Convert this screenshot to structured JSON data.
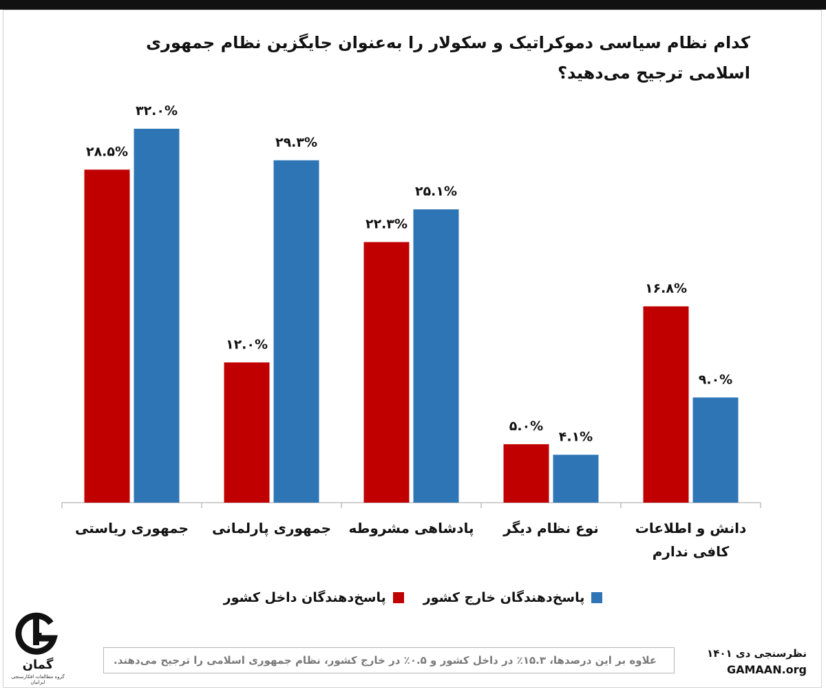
{
  "title": "کدام نظام سیاسی دموکراتیک و سکولار را به‌عنوان جایگزین نظام جمهوری اسلامی ترجیح می‌دهید؟",
  "colors": {
    "inside": "#c00000",
    "outside": "#2e75b6",
    "axis": "#bfbfbf"
  },
  "chart_data": {
    "type": "bar",
    "title": "کدام نظام سیاسی دموکراتیک و سکولار را به‌عنوان جایگزین نظام جمهوری اسلامی ترجیح می‌دهید؟",
    "categories": [
      [
        "جمهوری ریاستی"
      ],
      [
        "جمهوری پارلمانی"
      ],
      [
        "پادشاهی مشروطه"
      ],
      [
        "نوع نظام دیگر"
      ],
      [
        "دانش و اطلاعات",
        "کافی ندارم"
      ]
    ],
    "series": [
      {
        "name": "پاسخ‌دهندگان داخل کشور",
        "color": "#c00000",
        "values": [
          28.5,
          12.0,
          22.3,
          5.0,
          16.8
        ],
        "labels": [
          "۲۸.۵%",
          "۱۲.۰%",
          "۲۲.۳%",
          "۵.۰%",
          "۱۶.۸%"
        ]
      },
      {
        "name": "پاسخ‌دهندگان خارج کشور",
        "color": "#2e75b6",
        "values": [
          32.0,
          29.3,
          25.1,
          4.1,
          9.0
        ],
        "labels": [
          "۳۲.۰%",
          "۲۹.۳%",
          "۲۵.۱%",
          "۴.۱%",
          "۹.۰%"
        ]
      }
    ],
    "ylim": [
      0,
      35
    ],
    "grid": false,
    "legend_position": "bottom"
  },
  "legend": [
    {
      "label": "پاسخ‌دهندگان خارج کشور",
      "color": "#2e75b6"
    },
    {
      "label": "پاسخ‌دهندگان داخل کشور",
      "color": "#c00000"
    }
  ],
  "logo": {
    "word": "گمان",
    "subtitle": "گروه مطالعات افکارسنجی ایرانیان"
  },
  "note": "علاوه بر این درصدها، ۱۵.۳٪ در داخل کشور و ۰.۵٪ در خارج کشور، نظام جمهوری اسلامی را ترجیح می‌دهند.",
  "source": {
    "line1": "نظرسنجی دی ۱۴۰۱",
    "line2": "GAMAAN.org"
  }
}
